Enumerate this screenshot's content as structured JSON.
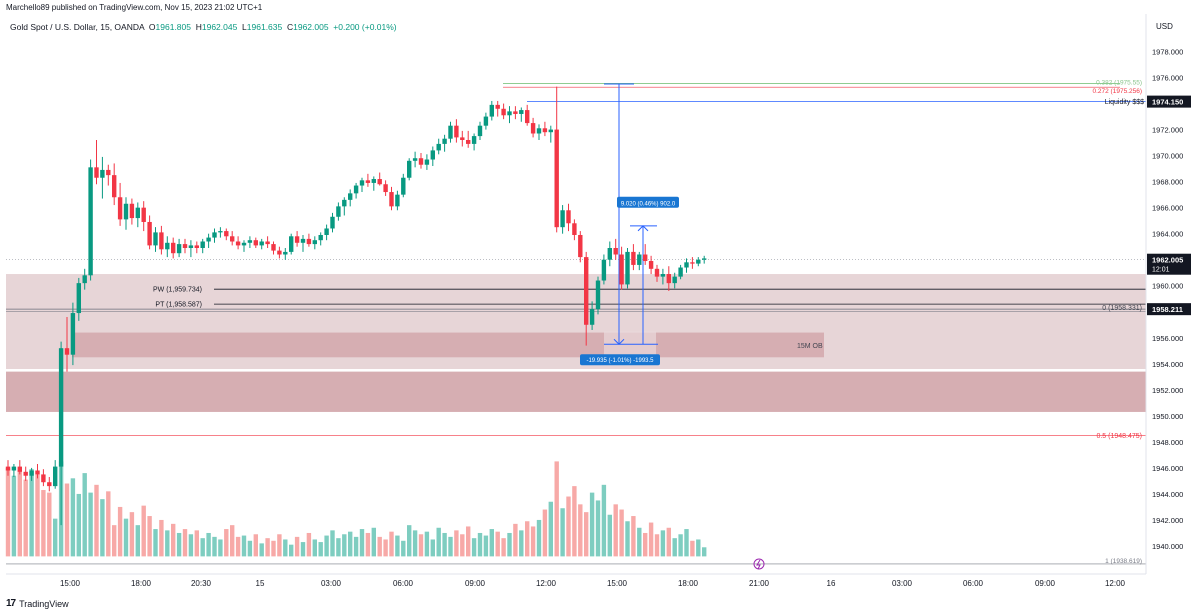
{
  "header": {
    "published": "Marchello89 published on TradingView.com, Nov 15, 2023 21:02 UTC+1"
  },
  "legend": {
    "symbol": "Gold Spot / U.S. Dollar, 15, OANDA",
    "o_label": "O",
    "o": "1961.805",
    "h_label": "H",
    "h": "1962.045",
    "l_label": "L",
    "l": "1961.635",
    "c_label": "C",
    "c": "1962.005",
    "change": "+0.200 (+0.01%)"
  },
  "brand": {
    "name": "TradingView",
    "logo": "17"
  },
  "colors": {
    "up": "#089981",
    "down": "#f23645",
    "vol_up": "#7ecdc0",
    "vol_down": "#f7a9a7",
    "zone": "#e7d5d7",
    "zone_dark": "#d6aeb2",
    "ruler": "#2962ff",
    "accent_label": "#1976d2"
  },
  "chart_data": {
    "type": "candlestick",
    "currency": "USD",
    "y_ticks": [
      "1978.000",
      "1976.000",
      "1974.000",
      "1972.000",
      "1970.000",
      "1968.000",
      "1966.000",
      "1964.000",
      "1962.000",
      "1960.000",
      "1958.000",
      "1956.000",
      "1954.000",
      "1952.000",
      "1950.000",
      "1948.000",
      "1946.000",
      "1944.000",
      "1942.000",
      "1940.000"
    ],
    "ylim": [
      1938.0,
      1979.5
    ],
    "x_ticks": [
      "15:00",
      "18:00",
      "20:30",
      "15",
      "03:00",
      "06:00",
      "09:00",
      "12:00",
      "15:00",
      "18:00",
      "21:00",
      "16",
      "03:00",
      "06:00",
      "09:00",
      "12:00"
    ],
    "price_badges": [
      {
        "label": "Liquidity $$$",
        "value": "1974.150"
      },
      {
        "label": "",
        "value": "1962.005",
        "sub": "12:01"
      },
      {
        "label": "0 (1958.331)",
        "value": "1958.211"
      }
    ],
    "levels": [
      {
        "label": "PW (1,959.734)",
        "price": 1959.734
      },
      {
        "label": "PT (1,958.587)",
        "price": 1958.587
      },
      {
        "label": "0.5 (1948.475)",
        "price": 1948.475
      },
      {
        "label": "0.272 (1975.256)",
        "price": 1975.256
      },
      {
        "label": "0.382 (1975.55)",
        "price": 1975.55
      },
      {
        "label": "1 (1938.619)",
        "price": 1938.619
      }
    ],
    "zones": [
      {
        "label": "15M OB",
        "top": 1956.4,
        "bottom": 1954.5
      },
      {
        "label": "",
        "top": 1960.9,
        "bottom": 1953.6
      },
      {
        "label": "",
        "top": 1953.4,
        "bottom": 1950.3
      }
    ],
    "measures": [
      {
        "label": "9.020 (0.46%) 902.0"
      },
      {
        "label": "-19.935 (-1.01%) -1993.5"
      }
    ],
    "candles": [
      [
        1946.1,
        1946.6,
        1945.4,
        1945.8
      ],
      [
        1945.8,
        1946.3,
        1945.3,
        1946.1
      ],
      [
        1946.1,
        1946.6,
        1945.5,
        1945.7
      ],
      [
        1945.7,
        1946.1,
        1945.0,
        1945.4
      ],
      [
        1945.4,
        1946.0,
        1945.0,
        1945.8
      ],
      [
        1945.8,
        1946.3,
        1945.2,
        1945.5
      ],
      [
        1945.5,
        1945.9,
        1944.6,
        1944.9
      ],
      [
        1944.9,
        1945.3,
        1944.2,
        1944.6
      ],
      [
        1944.6,
        1946.6,
        1944.4,
        1946.1
      ],
      [
        1946.1,
        1955.7,
        1941.6,
        1955.2
      ],
      [
        1955.2,
        1957.6,
        1953.4,
        1954.7
      ],
      [
        1954.7,
        1958.7,
        1953.9,
        1957.9
      ],
      [
        1957.9,
        1960.6,
        1957.3,
        1960.2
      ],
      [
        1960.2,
        1961.3,
        1959.7,
        1960.8
      ],
      [
        1960.8,
        1969.7,
        1960.4,
        1969.1
      ],
      [
        1969.1,
        1971.2,
        1967.8,
        1968.3
      ],
      [
        1968.3,
        1969.9,
        1966.7,
        1968.9
      ],
      [
        1968.9,
        1969.3,
        1967.7,
        1968.5
      ],
      [
        1968.5,
        1969.4,
        1966.2,
        1966.8
      ],
      [
        1966.8,
        1967.9,
        1964.6,
        1965.1
      ],
      [
        1965.1,
        1966.8,
        1964.3,
        1966.3
      ],
      [
        1966.3,
        1966.7,
        1964.7,
        1965.2
      ],
      [
        1965.2,
        1966.4,
        1964.5,
        1966.0
      ],
      [
        1966.0,
        1966.5,
        1964.2,
        1964.9
      ],
      [
        1964.9,
        1965.4,
        1962.8,
        1963.1
      ],
      [
        1963.1,
        1964.5,
        1962.6,
        1964.1
      ],
      [
        1964.1,
        1964.6,
        1962.4,
        1962.8
      ],
      [
        1962.8,
        1963.8,
        1962.2,
        1963.3
      ],
      [
        1963.3,
        1963.7,
        1962.1,
        1962.5
      ],
      [
        1962.5,
        1963.6,
        1962.2,
        1963.2
      ],
      [
        1963.2,
        1963.6,
        1962.5,
        1962.9
      ],
      [
        1962.9,
        1963.5,
        1962.2,
        1963.1
      ],
      [
        1963.1,
        1963.4,
        1962.5,
        1962.9
      ],
      [
        1962.9,
        1963.6,
        1962.5,
        1963.4
      ],
      [
        1963.4,
        1964.0,
        1962.9,
        1963.7
      ],
      [
        1963.7,
        1964.4,
        1963.3,
        1964.1
      ],
      [
        1964.1,
        1964.5,
        1963.7,
        1964.2
      ],
      [
        1964.2,
        1964.4,
        1963.5,
        1963.8
      ],
      [
        1963.8,
        1964.2,
        1963.1,
        1963.4
      ],
      [
        1963.4,
        1963.8,
        1962.8,
        1963.1
      ],
      [
        1963.1,
        1963.5,
        1962.6,
        1963.3
      ],
      [
        1963.3,
        1963.8,
        1962.9,
        1963.5
      ],
      [
        1963.5,
        1963.7,
        1962.9,
        1963.1
      ],
      [
        1963.1,
        1963.6,
        1962.8,
        1963.4
      ],
      [
        1963.4,
        1963.8,
        1962.9,
        1963.2
      ],
      [
        1963.2,
        1963.4,
        1962.4,
        1962.7
      ],
      [
        1962.7,
        1963.0,
        1962.1,
        1962.4
      ],
      [
        1962.4,
        1962.9,
        1962.0,
        1962.6
      ],
      [
        1962.6,
        1964.0,
        1962.4,
        1963.8
      ],
      [
        1963.8,
        1964.2,
        1963.0,
        1963.3
      ],
      [
        1963.3,
        1963.9,
        1962.6,
        1963.6
      ],
      [
        1963.6,
        1964.0,
        1963.0,
        1963.2
      ],
      [
        1963.2,
        1963.8,
        1962.8,
        1963.5
      ],
      [
        1963.5,
        1964.1,
        1963.1,
        1963.9
      ],
      [
        1963.9,
        1964.7,
        1963.5,
        1964.4
      ],
      [
        1964.4,
        1965.6,
        1964.1,
        1965.3
      ],
      [
        1965.3,
        1966.4,
        1965.0,
        1966.1
      ],
      [
        1966.1,
        1966.8,
        1965.4,
        1966.6
      ],
      [
        1966.6,
        1967.4,
        1966.1,
        1967.1
      ],
      [
        1967.1,
        1967.9,
        1966.7,
        1967.7
      ],
      [
        1967.7,
        1968.3,
        1967.2,
        1968.1
      ],
      [
        1968.1,
        1968.6,
        1967.6,
        1967.9
      ],
      [
        1967.9,
        1968.4,
        1967.3,
        1968.2
      ],
      [
        1968.2,
        1968.7,
        1967.7,
        1967.8
      ],
      [
        1967.8,
        1968.1,
        1966.9,
        1967.2
      ],
      [
        1967.2,
        1967.6,
        1965.8,
        1966.1
      ],
      [
        1966.1,
        1967.3,
        1965.8,
        1967.0
      ],
      [
        1967.0,
        1968.6,
        1966.8,
        1968.3
      ],
      [
        1968.3,
        1969.8,
        1968.1,
        1969.6
      ],
      [
        1969.6,
        1970.3,
        1969.1,
        1969.8
      ],
      [
        1969.8,
        1970.2,
        1969.0,
        1969.3
      ],
      [
        1969.3,
        1970.1,
        1968.9,
        1969.7
      ],
      [
        1969.7,
        1970.7,
        1969.2,
        1970.4
      ],
      [
        1970.4,
        1971.3,
        1970.1,
        1970.9
      ],
      [
        1970.9,
        1971.6,
        1970.3,
        1971.3
      ],
      [
        1971.3,
        1972.6,
        1971.0,
        1972.3
      ],
      [
        1972.3,
        1972.8,
        1971.0,
        1971.4
      ],
      [
        1971.4,
        1971.9,
        1970.7,
        1971.2
      ],
      [
        1971.2,
        1971.9,
        1970.6,
        1970.9
      ],
      [
        1970.9,
        1971.7,
        1970.4,
        1971.5
      ],
      [
        1971.5,
        1972.6,
        1971.2,
        1972.3
      ],
      [
        1972.3,
        1973.3,
        1972.0,
        1973.0
      ],
      [
        1973.0,
        1974.2,
        1972.7,
        1973.9
      ],
      [
        1973.9,
        1974.2,
        1973.0,
        1973.6
      ],
      [
        1973.6,
        1974.0,
        1972.8,
        1973.1
      ],
      [
        1973.1,
        1973.8,
        1972.5,
        1973.4
      ],
      [
        1973.4,
        1973.8,
        1972.8,
        1973.2
      ],
      [
        1973.2,
        1973.7,
        1972.6,
        1973.5
      ],
      [
        1973.5,
        1973.9,
        1972.3,
        1972.5
      ],
      [
        1972.5,
        1972.9,
        1971.4,
        1971.7
      ],
      [
        1971.7,
        1972.4,
        1971.2,
        1972.1
      ],
      [
        1972.1,
        1972.6,
        1971.5,
        1971.8
      ],
      [
        1971.8,
        1972.3,
        1971.0,
        1972.0
      ],
      [
        1972.0,
        1975.3,
        1964.1,
        1964.5
      ],
      [
        1964.5,
        1966.2,
        1964.0,
        1965.8
      ],
      [
        1965.8,
        1966.3,
        1964.2,
        1964.8
      ],
      [
        1964.8,
        1965.1,
        1963.5,
        1963.9
      ],
      [
        1963.9,
        1964.2,
        1961.8,
        1962.2
      ],
      [
        1962.2,
        1962.6,
        1955.4,
        1957.0
      ],
      [
        1957.0,
        1958.8,
        1956.6,
        1958.2
      ],
      [
        1958.2,
        1960.7,
        1957.8,
        1960.4
      ],
      [
        1960.4,
        1962.4,
        1960.1,
        1962.0
      ],
      [
        1962.0,
        1963.4,
        1961.5,
        1962.9
      ],
      [
        1962.9,
        1963.6,
        1962.0,
        1962.4
      ],
      [
        1962.4,
        1963.0,
        1959.7,
        1960.1
      ],
      [
        1960.1,
        1962.9,
        1959.8,
        1962.6
      ],
      [
        1962.6,
        1963.2,
        1961.2,
        1961.6
      ],
      [
        1961.6,
        1962.6,
        1961.2,
        1962.4
      ],
      [
        1962.4,
        1963.2,
        1961.6,
        1961.9
      ],
      [
        1961.9,
        1962.3,
        1960.9,
        1961.3
      ],
      [
        1961.3,
        1961.6,
        1960.3,
        1960.7
      ],
      [
        1960.7,
        1961.3,
        1960.1,
        1960.9
      ],
      [
        1960.9,
        1961.5,
        1959.6,
        1960.2
      ],
      [
        1960.2,
        1961.0,
        1959.8,
        1960.7
      ],
      [
        1960.7,
        1961.6,
        1960.5,
        1961.4
      ],
      [
        1961.4,
        1962.1,
        1961.0,
        1961.8
      ],
      [
        1961.8,
        1962.2,
        1961.3,
        1961.7
      ],
      [
        1961.7,
        1962.2,
        1961.5,
        1962.0
      ],
      [
        1962.0,
        1962.3,
        1961.7,
        1962.1
      ]
    ],
    "volumes": [
      1946.0,
      1945.4,
      1945.8,
      1945.1,
      1945.9,
      1945.5,
      1944.3,
      1944.1,
      1942.1,
      1946.5,
      1944.8,
      1945.2,
      1944.0,
      1945.6,
      1944.1,
      1944.7,
      1943.6,
      1944.2,
      1941.6,
      1943.0,
      1942.1,
      1942.6,
      1941.6,
      1943.1,
      1942.3,
      1941.3,
      1942.0,
      1941.2,
      1941.7,
      1941.0,
      1941.3,
      1940.9,
      1941.2,
      1940.6,
      1941.0,
      1940.7,
      1940.5,
      1941.3,
      1941.6,
      1940.7,
      1940.8,
      1940.4,
      1940.9,
      1940.2,
      1940.6,
      1940.4,
      1940.9,
      1940.5,
      1940.1,
      1940.7,
      1940.3,
      1941.0,
      1940.5,
      1940.3,
      1940.8,
      1941.2,
      1940.6,
      1940.9,
      1941.1,
      1940.7,
      1941.3,
      1941.0,
      1941.4,
      1940.7,
      1940.5,
      1941.1,
      1940.8,
      1940.4,
      1941.6,
      1941.2,
      1940.9,
      1941.1,
      1940.5,
      1941.4,
      1941.0,
      1940.7,
      1941.2,
      1940.9,
      1941.5,
      1940.6,
      1941.0,
      1940.8,
      1941.3,
      1941.1,
      1940.6,
      1941.0,
      1941.7,
      1941.2,
      1941.9,
      1941.5,
      1942.0,
      1942.8,
      1943.4,
      1946.5,
      1942.9,
      1943.8,
      1944.6,
      1943.2,
      1942.6,
      1944.1,
      1943.5,
      1944.7,
      1942.4,
      1943.2,
      1942.8,
      1941.9,
      1942.3,
      1941.4,
      1941.0,
      1941.8,
      1940.9,
      1941.2,
      1941.4,
      1940.6,
      1940.9,
      1941.3,
      1940.4,
      1940.5,
      1939.9
    ],
    "x_start_index_label": "15:00"
  }
}
